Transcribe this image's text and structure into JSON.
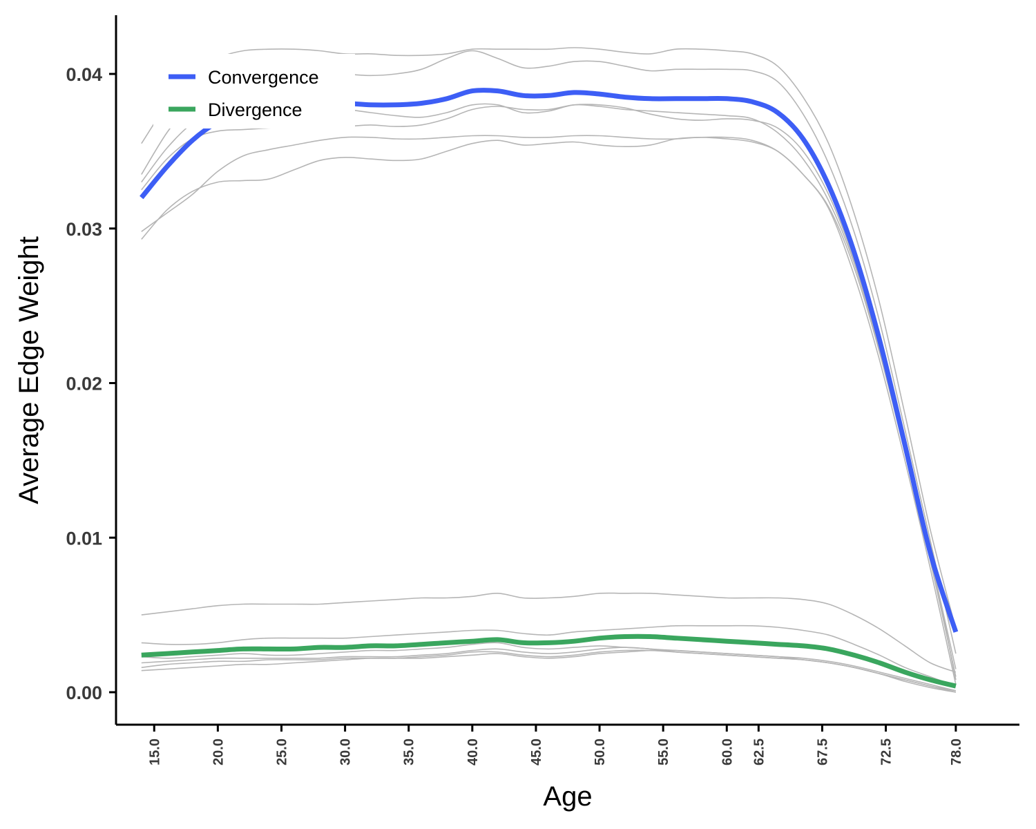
{
  "chart_data": {
    "type": "line",
    "title": "",
    "xlabel": "Age",
    "ylabel": "Average Edge Weight",
    "xlim": [
      12,
      83
    ],
    "ylim": [
      -0.0021,
      0.0438
    ],
    "grid": false,
    "legend_position": "top-left",
    "x_ticks": [
      {
        "value": 15.0,
        "label": "15.0"
      },
      {
        "value": 20.0,
        "label": "20.0"
      },
      {
        "value": 25.0,
        "label": "25.0"
      },
      {
        "value": 30.0,
        "label": "30.0"
      },
      {
        "value": 35.0,
        "label": "35.0"
      },
      {
        "value": 40.0,
        "label": "40.0"
      },
      {
        "value": 45.0,
        "label": "45.0"
      },
      {
        "value": 50.0,
        "label": "50.0"
      },
      {
        "value": 55.0,
        "label": "55.0"
      },
      {
        "value": 60.0,
        "label": "60.0"
      },
      {
        "value": 62.5,
        "label": "62.5"
      },
      {
        "value": 67.5,
        "label": "67.5"
      },
      {
        "value": 72.5,
        "label": "72.5"
      },
      {
        "value": 78.0,
        "label": "78.0"
      }
    ],
    "y_ticks": [
      {
        "value": 0.0,
        "label": "0.00"
      },
      {
        "value": 0.01,
        "label": "0.01"
      },
      {
        "value": 0.02,
        "label": "0.02"
      },
      {
        "value": 0.03,
        "label": "0.03"
      },
      {
        "value": 0.04,
        "label": "0.04"
      }
    ],
    "series": [
      {
        "name": "Convergence",
        "color": "#3d5ef5",
        "x": [
          14,
          16,
          18,
          20,
          22,
          24,
          26,
          28,
          30,
          32,
          34,
          36,
          38,
          40,
          42,
          44,
          46,
          48,
          50,
          52,
          54,
          56,
          58,
          60,
          62,
          64,
          66,
          68,
          70,
          72,
          74,
          76,
          78
        ],
        "y": [
          0.032,
          0.034,
          0.0357,
          0.0369,
          0.0376,
          0.0379,
          0.038,
          0.0381,
          0.0381,
          0.038,
          0.038,
          0.0381,
          0.0384,
          0.0389,
          0.0389,
          0.0386,
          0.0386,
          0.0388,
          0.0387,
          0.0385,
          0.0384,
          0.0384,
          0.0384,
          0.0384,
          0.0382,
          0.0375,
          0.0358,
          0.0328,
          0.0285,
          0.0228,
          0.016,
          0.009,
          0.0039
        ]
      },
      {
        "name": "Divergence",
        "color": "#3aa65e",
        "x": [
          14,
          16,
          18,
          20,
          22,
          24,
          26,
          28,
          30,
          32,
          34,
          36,
          38,
          40,
          42,
          44,
          46,
          48,
          50,
          52,
          54,
          56,
          58,
          60,
          62,
          64,
          66,
          68,
          70,
          72,
          74,
          76,
          78
        ],
        "y": [
          0.0024,
          0.0025,
          0.0026,
          0.0027,
          0.0028,
          0.0028,
          0.0028,
          0.0029,
          0.0029,
          0.003,
          0.003,
          0.0031,
          0.0032,
          0.0033,
          0.0034,
          0.0032,
          0.0032,
          0.0033,
          0.0035,
          0.0036,
          0.0036,
          0.0035,
          0.0034,
          0.0033,
          0.0032,
          0.0031,
          0.003,
          0.0028,
          0.0024,
          0.0019,
          0.0013,
          0.0008,
          0.0004
        ]
      }
    ],
    "background_lines": {
      "color": "#b5b5b5",
      "x": [
        14,
        16,
        18,
        20,
        22,
        24,
        26,
        28,
        30,
        32,
        34,
        36,
        38,
        40,
        42,
        44,
        46,
        48,
        50,
        52,
        54,
        56,
        58,
        60,
        62,
        64,
        66,
        68,
        70,
        72,
        74,
        76,
        78
      ],
      "lines": [
        [
          0.0355,
          0.038,
          0.0398,
          0.041,
          0.0415,
          0.0416,
          0.0416,
          0.0415,
          0.0413,
          0.0413,
          0.0412,
          0.0412,
          0.0413,
          0.0416,
          0.0416,
          0.0416,
          0.0416,
          0.0417,
          0.0416,
          0.0414,
          0.0413,
          0.0416,
          0.0416,
          0.0415,
          0.0413,
          0.0405,
          0.0385,
          0.0355,
          0.031,
          0.0252,
          0.018,
          0.0105,
          0.0041
        ],
        [
          0.0335,
          0.0362,
          0.0382,
          0.0395,
          0.04,
          0.0402,
          0.0402,
          0.0401,
          0.04,
          0.0399,
          0.04,
          0.0403,
          0.041,
          0.0415,
          0.041,
          0.0404,
          0.0405,
          0.0408,
          0.0408,
          0.0405,
          0.0402,
          0.0403,
          0.0403,
          0.0403,
          0.0402,
          0.0395,
          0.0374,
          0.0342,
          0.0298,
          0.024,
          0.017,
          0.0098,
          0.0025
        ],
        [
          0.033,
          0.0352,
          0.0368,
          0.0375,
          0.0377,
          0.0377,
          0.0377,
          0.0377,
          0.0377,
          0.0375,
          0.0373,
          0.0372,
          0.0375,
          0.038,
          0.038,
          0.0375,
          0.0376,
          0.038,
          0.0379,
          0.0377,
          0.0376,
          0.0375,
          0.0374,
          0.0373,
          0.0371,
          0.0362,
          0.0345,
          0.0318,
          0.0278,
          0.0222,
          0.0158,
          0.0088,
          0.0015
        ],
        [
          0.0325,
          0.0345,
          0.0358,
          0.0363,
          0.0364,
          0.0365,
          0.0366,
          0.0366,
          0.0366,
          0.0367,
          0.0366,
          0.0367,
          0.0371,
          0.0377,
          0.0379,
          0.0377,
          0.0377,
          0.038,
          0.038,
          0.0378,
          0.0374,
          0.0371,
          0.037,
          0.0371,
          0.037,
          0.0365,
          0.035,
          0.0322,
          0.028,
          0.0225,
          0.016,
          0.009,
          0.0008
        ],
        [
          0.0298,
          0.031,
          0.0322,
          0.0337,
          0.0347,
          0.0351,
          0.0354,
          0.0357,
          0.0359,
          0.0359,
          0.0358,
          0.0358,
          0.0359,
          0.036,
          0.036,
          0.0359,
          0.0359,
          0.036,
          0.036,
          0.0359,
          0.0358,
          0.0358,
          0.0359,
          0.0358,
          0.0356,
          0.035,
          0.0335,
          0.0314,
          0.0275,
          0.022,
          0.0155,
          0.0085,
          0.001
        ],
        [
          0.0293,
          0.0312,
          0.0324,
          0.033,
          0.0331,
          0.0332,
          0.0338,
          0.0344,
          0.0346,
          0.0345,
          0.0344,
          0.0345,
          0.035,
          0.0355,
          0.0357,
          0.0354,
          0.0355,
          0.0356,
          0.0354,
          0.0353,
          0.0354,
          0.0358,
          0.0359,
          0.0359,
          0.0357,
          0.035,
          0.0335,
          0.0313,
          0.027,
          0.0215,
          0.015,
          0.008,
          0.0005
        ],
        [
          0.005,
          0.0052,
          0.0054,
          0.0056,
          0.0057,
          0.0057,
          0.0057,
          0.0057,
          0.0058,
          0.0059,
          0.006,
          0.0061,
          0.0061,
          0.0062,
          0.0064,
          0.0061,
          0.0061,
          0.0062,
          0.0064,
          0.0064,
          0.0064,
          0.0063,
          0.0062,
          0.0061,
          0.0061,
          0.0061,
          0.006,
          0.0057,
          0.005,
          0.0041,
          0.003,
          0.0019,
          0.0013
        ],
        [
          0.0032,
          0.0031,
          0.0031,
          0.0032,
          0.0034,
          0.0035,
          0.0035,
          0.0035,
          0.0035,
          0.0036,
          0.0037,
          0.0038,
          0.0039,
          0.004,
          0.004,
          0.0038,
          0.0037,
          0.0039,
          0.004,
          0.0041,
          0.0042,
          0.0043,
          0.0043,
          0.0043,
          0.0043,
          0.0042,
          0.004,
          0.0037,
          0.0031,
          0.0024,
          0.0016,
          0.001,
          0.0004
        ],
        [
          0.0023,
          0.0022,
          0.0023,
          0.0024,
          0.0025,
          0.0024,
          0.0024,
          0.0025,
          0.0026,
          0.0027,
          0.0027,
          0.0028,
          0.0029,
          0.0031,
          0.0032,
          0.0029,
          0.0028,
          0.0029,
          0.003,
          0.0029,
          0.0028,
          0.0026,
          0.0025,
          0.0024,
          0.0023,
          0.0022,
          0.0021,
          0.0019,
          0.0016,
          0.0012,
          0.0008,
          0.0004,
          0.0001
        ],
        [
          0.0019,
          0.002,
          0.0021,
          0.0022,
          0.0022,
          0.0022,
          0.0022,
          0.0022,
          0.0023,
          0.0023,
          0.0023,
          0.0024,
          0.0025,
          0.0027,
          0.0028,
          0.0026,
          0.0025,
          0.0026,
          0.0028,
          0.0029,
          0.0028,
          0.0027,
          0.0026,
          0.0025,
          0.0024,
          0.0023,
          0.0022,
          0.002,
          0.0017,
          0.0013,
          0.0009,
          0.0005,
          0.0001
        ],
        [
          0.0016,
          0.0018,
          0.0019,
          0.002,
          0.002,
          0.0021,
          0.0021,
          0.0021,
          0.0022,
          0.0022,
          0.0022,
          0.0023,
          0.0024,
          0.0026,
          0.0026,
          0.0024,
          0.0023,
          0.0024,
          0.0026,
          0.0027,
          0.0027,
          0.0026,
          0.0025,
          0.0024,
          0.0023,
          0.0022,
          0.0021,
          0.0019,
          0.0016,
          0.0012,
          0.0008,
          0.0004,
          0.0
        ],
        [
          0.0014,
          0.0015,
          0.0016,
          0.0017,
          0.0018,
          0.0018,
          0.0019,
          0.002,
          0.0021,
          0.0022,
          0.0022,
          0.0022,
          0.0023,
          0.0024,
          0.0025,
          0.0023,
          0.0022,
          0.0023,
          0.0025,
          0.0026,
          0.0027,
          0.0027,
          0.0026,
          0.0025,
          0.0024,
          0.0023,
          0.0021,
          0.0019,
          0.0016,
          0.0012,
          0.0007,
          0.0003,
          0.0
        ]
      ]
    }
  }
}
